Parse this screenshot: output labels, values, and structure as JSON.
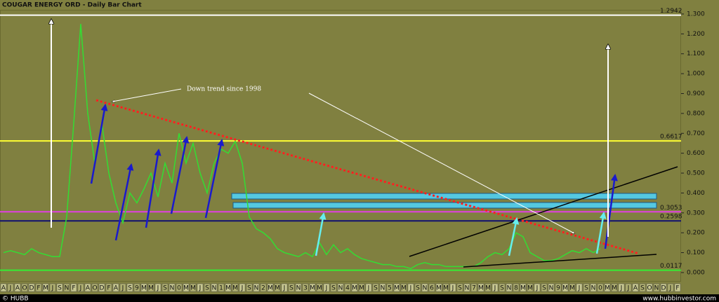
{
  "chart_data": {
    "type": "line",
    "title": "COUGAR ENERGY ORD - Daily Bar Chart",
    "annotations": [
      "Down trend since 1998"
    ],
    "categories": [
      "A",
      "J",
      "A",
      "O",
      "D",
      "F",
      "M",
      "J",
      "S",
      "N",
      "F",
      "J",
      "A",
      "O",
      "D",
      "F",
      "A",
      "J",
      "S",
      "9",
      "M",
      "M",
      "J",
      "S",
      "N",
      "0",
      "M",
      "M",
      "J",
      "S",
      "N",
      "1",
      "M",
      "M",
      "J",
      "S",
      "N",
      "2",
      "M",
      "M",
      "J",
      "S",
      "N",
      "3",
      "M",
      "M",
      "J",
      "S",
      "N",
      "4",
      "M",
      "M",
      "J",
      "S",
      "N",
      "5",
      "M",
      "M",
      "J",
      "S",
      "N",
      "6",
      "M",
      "M",
      "J",
      "S",
      "N",
      "7",
      "M",
      "M",
      "J",
      "S",
      "N",
      "8",
      "M",
      "M",
      "J",
      "S",
      "N",
      "9",
      "M",
      "M",
      "J",
      "S",
      "N",
      "0",
      "M",
      "M",
      "J",
      "J",
      "A",
      "S",
      "O",
      "N",
      "D",
      "J",
      "F"
    ],
    "series": [
      {
        "color": "#33dd33",
        "values": [
          0.1,
          0.11,
          0.1,
          0.09,
          0.12,
          0.1,
          0.09,
          0.08,
          0.08,
          0.28,
          0.75,
          1.25,
          0.8,
          0.55,
          0.75,
          0.5,
          0.35,
          0.25,
          0.4,
          0.35,
          0.42,
          0.5,
          0.38,
          0.55,
          0.45,
          0.7,
          0.55,
          0.65,
          0.5,
          0.4,
          0.55,
          0.62,
          0.6,
          0.66,
          0.55,
          0.28,
          0.22,
          0.2,
          0.17,
          0.12,
          0.1,
          0.09,
          0.08,
          0.1,
          0.08,
          0.15,
          0.09,
          0.14,
          0.1,
          0.12,
          0.09,
          0.07,
          0.06,
          0.05,
          0.04,
          0.04,
          0.03,
          0.03,
          0.02,
          0.04,
          0.05,
          0.04,
          0.04,
          0.03,
          0.03,
          0.03,
          0.03,
          0.03,
          0.05,
          0.08,
          0.1,
          0.09,
          0.12,
          0.2,
          0.18,
          0.1,
          0.08,
          0.06,
          0.06,
          0.07,
          0.09,
          0.11,
          0.1,
          0.12,
          0.1,
          0.12,
          null,
          null,
          null,
          null,
          null,
          null,
          null,
          null,
          null,
          null,
          null
        ]
      }
    ],
    "levels": [
      {
        "value": 1.2942,
        "color": "#ffffff"
      },
      {
        "value": 0.6617,
        "color": "#ffff33"
      },
      {
        "value": 0.3053,
        "color": "#e040e0"
      },
      {
        "value": 0.2598,
        "color": "#101070"
      },
      {
        "value": 0.0117,
        "color": "#33ee33"
      }
    ],
    "ylim": [
      -0.046,
      1.321
    ],
    "yticks": [
      {
        "value": 0,
        "label": "0.000"
      },
      {
        "value": 0.1,
        "label": "0.100"
      },
      {
        "value": 0.2,
        "label": "0.200"
      },
      {
        "value": 0.3,
        "label": "0.300"
      },
      {
        "value": 0.4,
        "label": "0.400"
      },
      {
        "value": 0.5,
        "label": "0.500"
      },
      {
        "value": 0.6,
        "label": "0.600"
      },
      {
        "value": 0.7,
        "label": "0.700"
      },
      {
        "value": 0.8,
        "label": "0.800"
      },
      {
        "value": 0.9,
        "label": "0.900"
      },
      {
        "value": 1.0,
        "label": "1.000"
      },
      {
        "value": 1.1,
        "label": "1.100"
      },
      {
        "value": 1.2,
        "label": "1.200"
      },
      {
        "value": 1.3,
        "label": "1.300"
      }
    ]
  },
  "footer": {
    "left": "© HUBB",
    "right": "www.hubbinvestor.com"
  }
}
